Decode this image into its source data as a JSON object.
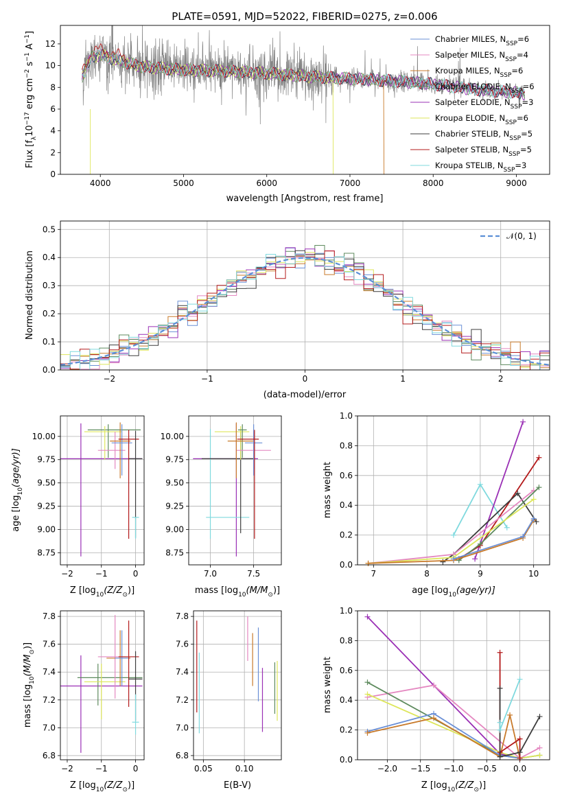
{
  "figure_title": "PLATE=0591, MJD=52022, FIBERID=0275, z=0.006",
  "colors": {
    "Chabrier MILES": "#6a8fd6",
    "Salpeter MILES": "#e487c0",
    "Kroupa MILES": "#c87a2a",
    "Chabrier ELODIE": "#5d8a5d",
    "Salpeter ELODIE": "#9a2fb5",
    "Kroupa ELODIE": "#dde65a",
    "Chabrier STELIB": "#3c3c3c",
    "Salpeter STELIB": "#b3191a",
    "Kroupa STELIB": "#7fd9de",
    "data": "#808080",
    "normal": "#5b8fd6"
  },
  "chart_data": [
    {
      "id": "spectrum",
      "type": "line",
      "title": "PLATE=0591, MJD=52022, FIBERID=0275, z=0.006",
      "xlabel": "wavelength [Angstrom, rest frame]",
      "ylabel": "Flux [f",
      "ylabel_sub": "λ",
      "ylabel_rest": "10",
      "ylabel_exp": "−17",
      "ylabel_tail": " erg cm",
      "ylabel_exp2": "−2",
      "ylabel_tail2": " s",
      "ylabel_exp3": "−1",
      "ylabel_tail3": " A",
      "ylabel_exp4": "−1",
      "ylabel_end": "]",
      "xlim": [
        3520,
        9400
      ],
      "ylim": [
        0,
        13.7
      ],
      "xticks": [
        4000,
        5000,
        6000,
        7000,
        8000,
        9000
      ],
      "yticks": [
        0,
        2,
        4,
        6,
        8,
        10,
        12
      ],
      "legend": [
        {
          "base": "Chabrier MILES, N",
          "sub": "SSP",
          "tail": "=6"
        },
        {
          "base": "Salpeter MILES, N",
          "sub": "SSP",
          "tail": "=4"
        },
        {
          "base": "Kroupa MILES, N",
          "sub": "SSP",
          "tail": "=6"
        },
        {
          "base": "Chabrier ELODIE, N",
          "sub": "SSP",
          "tail": "=6"
        },
        {
          "base": "Salpeter ELODIE, N",
          "sub": "SSP",
          "tail": "=3"
        },
        {
          "base": "Kroupa ELODIE, N",
          "sub": "SSP",
          "tail": "=6"
        },
        {
          "base": "Chabrier STELIB, N",
          "sub": "SSP",
          "tail": "=5"
        },
        {
          "base": "Salpeter STELIB, N",
          "sub": "SSP",
          "tail": "=5"
        },
        {
          "base": "Kroupa STELIB, N",
          "sub": "SSP",
          "tail": "=3"
        }
      ],
      "legend_placement": "upper-right",
      "continuum": [
        [
          3780,
          9.0
        ],
        [
          3900,
          10.8
        ],
        [
          4000,
          11.0
        ],
        [
          4200,
          10.5
        ],
        [
          4500,
          9.9
        ],
        [
          5000,
          9.6
        ],
        [
          5500,
          9.5
        ],
        [
          6000,
          9.3
        ],
        [
          6500,
          9.0
        ],
        [
          7000,
          8.8
        ],
        [
          7500,
          8.6
        ],
        [
          8000,
          8.3
        ],
        [
          8500,
          7.8
        ],
        [
          9000,
          7.5
        ],
        [
          9100,
          7.4
        ]
      ],
      "dropouts": {
        "Kroupa ELODIE": 6800,
        "Kroupa MILES": 7410
      }
    },
    {
      "id": "residuals",
      "type": "histogram",
      "xlabel": "(data-model)/error",
      "ylabel": "Normed distribution",
      "xlim": [
        -2.5,
        2.5
      ],
      "ylim": [
        0,
        0.53
      ],
      "xticks": [
        -2,
        -1,
        0,
        1,
        2
      ],
      "xtick_labels": [
        "−2",
        "−1",
        "0",
        "1",
        "2"
      ],
      "yticks": [
        0.0,
        0.1,
        0.2,
        0.3,
        0.4,
        0.5
      ],
      "grid": true,
      "bin_width": 0.1,
      "legend": [
        {
          "label": "𝒩(0, 1)"
        }
      ],
      "legend_placement": "upper-right"
    },
    {
      "id": "age-vs-Z",
      "type": "errorbar",
      "xlabel_main": "Z [log",
      "xlabel_sub": "10",
      "xlabel_tail": "(Z/Z",
      "xlabel_sub2": "⊙",
      "xlabel_end": ")]",
      "ylabel_main": "age  [log",
      "ylabel_sub": "10",
      "ylabel_tail": "(age/yr)]",
      "xlim": [
        -2.2,
        0.25
      ],
      "ylim": [
        8.62,
        10.22
      ],
      "xticks": [
        -2,
        -1,
        0
      ],
      "xtick_labels": [
        "−2",
        "−1",
        "0"
      ],
      "yticks": [
        8.75,
        9.0,
        9.25,
        9.5,
        9.75,
        10.0
      ],
      "ytick_labels": [
        "8.75",
        "9.00",
        "9.25",
        "9.50",
        "9.75",
        "10.00"
      ],
      "points": [
        {
          "model": "Salpeter ELODIE",
          "x": -1.6,
          "xerr": [
            0.6,
            1.8
          ],
          "y": 9.76,
          "yerr": [
            1.05,
            0.38
          ]
        },
        {
          "model": "Chabrier ELODIE",
          "x": -0.8,
          "xerr": [
            0.6,
            0.95
          ],
          "y": 10.07,
          "yerr": [
            0.3,
            0.06
          ]
        },
        {
          "model": "Kroupa ELODIE",
          "x": -0.9,
          "xerr": [
            0.6,
            0.5
          ],
          "y": 10.05,
          "yerr": [
            0.3,
            0.06
          ]
        },
        {
          "model": "Salpeter MILES",
          "x": -0.6,
          "xerr": [
            0.5,
            0.3
          ],
          "y": 9.85,
          "yerr": [
            0.2,
            0.2
          ]
        },
        {
          "model": "Kroupa MILES",
          "x": -0.45,
          "xerr": [
            0.3,
            0.3
          ],
          "y": 9.95,
          "yerr": [
            0.4,
            0.2
          ]
        },
        {
          "model": "Chabrier MILES",
          "x": -0.4,
          "xerr": [
            0.3,
            0.3
          ],
          "y": 9.93,
          "yerr": [
            0.35,
            0.2
          ]
        },
        {
          "model": "Salpeter STELIB",
          "x": -0.2,
          "xerr": [
            0.3,
            0.3
          ],
          "y": 9.97,
          "yerr": [
            1.07,
            0.1
          ]
        },
        {
          "model": "Chabrier STELIB",
          "x": 0.0,
          "xerr": [
            0.2,
            0.2
          ],
          "y": 9.76,
          "yerr": [
            0.85,
            0.3
          ]
        },
        {
          "model": "Kroupa STELIB",
          "x": 0.0,
          "xerr": [
            0.1,
            0.1
          ],
          "y": 9.13,
          "yerr": [
            0.23,
            0.0
          ]
        }
      ]
    },
    {
      "id": "age-vs-mass",
      "type": "errorbar",
      "xlabel_main": "mass [log",
      "xlabel_sub": "10",
      "xlabel_tail": "(M/M",
      "xlabel_sub2": "⊙",
      "xlabel_end": ")]",
      "xlim": [
        6.75,
        7.82
      ],
      "ylim": [
        8.62,
        10.22
      ],
      "xticks": [
        7.0,
        7.5
      ],
      "xtick_labels": [
        "7.0",
        "7.5"
      ],
      "yticks": [
        8.75,
        9.0,
        9.25,
        9.5,
        9.75,
        10.0
      ],
      "ytick_labels": [
        "8.75",
        "9.00",
        "9.25",
        "9.50",
        "9.75",
        "10.00"
      ],
      "points": [
        {
          "model": "Salpeter ELODIE",
          "x": 7.3,
          "xerr": [
            0.5,
            0.25
          ],
          "y": 9.76,
          "yerr": [
            1.05,
            0.38
          ]
        },
        {
          "model": "Kroupa STELIB",
          "x": 7.0,
          "xerr": [
            0.05,
            0.45
          ],
          "y": 9.13,
          "yerr": [
            0.23,
            0.95
          ]
        },
        {
          "model": "Chabrier STELIB",
          "x": 7.35,
          "xerr": [
            0.45,
            0.15
          ],
          "y": 9.76,
          "yerr": [
            0.8,
            0.3
          ]
        },
        {
          "model": "Kroupa ELODIE",
          "x": 7.35,
          "xerr": [
            0.3,
            0.1
          ],
          "y": 10.05,
          "yerr": [
            0.3,
            0.06
          ]
        },
        {
          "model": "Chabrier ELODIE",
          "x": 7.37,
          "xerr": [
            0.05,
            0.05
          ],
          "y": 10.07,
          "yerr": [
            0.3,
            0.06
          ]
        },
        {
          "model": "Salpeter MILES",
          "x": 7.5,
          "xerr": [
            0.2,
            0.2
          ],
          "y": 9.85,
          "yerr": [
            0.2,
            0.2
          ]
        },
        {
          "model": "Kroupa MILES",
          "x": 7.3,
          "xerr": [
            0.1,
            0.2
          ],
          "y": 9.95,
          "yerr": [
            0.4,
            0.2
          ]
        },
        {
          "model": "Chabrier MILES",
          "x": 7.5,
          "xerr": [
            0.1,
            0.1
          ],
          "y": 9.93,
          "yerr": [
            0.35,
            0.2
          ]
        },
        {
          "model": "Salpeter STELIB",
          "x": 7.51,
          "xerr": [
            0.2,
            0.05
          ],
          "y": 9.97,
          "yerr": [
            1.07,
            0.1
          ]
        }
      ]
    },
    {
      "id": "weight-vs-age",
      "type": "line",
      "xlabel_main": "age  [log",
      "xlabel_sub": "10",
      "xlabel_tail": "(age/yr)]",
      "ylabel": "mass weight",
      "xlim": [
        6.7,
        10.3
      ],
      "ylim": [
        0,
        1.0
      ],
      "xticks": [
        7,
        8,
        9,
        10
      ],
      "yticks": [
        0.0,
        0.2,
        0.4,
        0.6,
        0.8,
        1.0
      ],
      "series": [
        {
          "model": "Kroupa STELIB",
          "x": [
            8.5,
            9.0,
            9.5
          ],
          "y": [
            0.2,
            0.54,
            0.25
          ]
        },
        {
          "model": "Salpeter ELODIE",
          "x": [
            8.9,
            9.8
          ],
          "y": [
            0.04,
            0.96
          ]
        },
        {
          "model": "Salpeter STELIB",
          "x": [
            8.6,
            9.0,
            10.1
          ],
          "y": [
            0.04,
            0.13,
            0.72
          ]
        },
        {
          "model": "Chabrier STELIB",
          "x": [
            8.3,
            8.5,
            9.7,
            10.05
          ],
          "y": [
            0.02,
            0.07,
            0.48,
            0.29
          ]
        },
        {
          "model": "Salpeter MILES",
          "x": [
            6.9,
            8.5,
            10.0
          ],
          "y": [
            0.01,
            0.07,
            0.5
          ]
        },
        {
          "model": "Chabrier ELODIE",
          "x": [
            8.6,
            9.0,
            10.1
          ],
          "y": [
            0.03,
            0.14,
            0.52
          ]
        },
        {
          "model": "Kroupa ELODIE",
          "x": [
            6.9,
            8.5,
            10.0
          ],
          "y": [
            0.01,
            0.05,
            0.44
          ]
        },
        {
          "model": "Kroupa MILES",
          "x": [
            6.9,
            8.5,
            9.8,
            10.0
          ],
          "y": [
            0.01,
            0.03,
            0.18,
            0.3
          ]
        },
        {
          "model": "Chabrier MILES",
          "x": [
            8.5,
            9.8,
            10.0
          ],
          "y": [
            0.04,
            0.19,
            0.31
          ]
        }
      ]
    },
    {
      "id": "mass-vs-Z",
      "type": "errorbar",
      "xlabel_main": "Z [log",
      "xlabel_sub": "10",
      "xlabel_tail": "(Z/Z",
      "xlabel_sub2": "⊙",
      "xlabel_end": ")]",
      "ylabel_main": "mass [log",
      "ylabel_sub": "10",
      "ylabel_tail": "(M/M",
      "ylabel_sub2": "⊙",
      "ylabel_end": ")]",
      "xlim": [
        -2.2,
        0.25
      ],
      "ylim": [
        6.77,
        7.84
      ],
      "xticks": [
        -2,
        -1,
        0
      ],
      "xtick_labels": [
        "−2",
        "−1",
        "0"
      ],
      "yticks": [
        6.8,
        7.0,
        7.2,
        7.4,
        7.6,
        7.8
      ],
      "ytick_labels": [
        "6.8",
        "7.0",
        "7.2",
        "7.4",
        "7.6",
        "7.8"
      ],
      "points": [
        {
          "model": "Salpeter ELODIE",
          "x": -1.6,
          "xerr": [
            0.6,
            1.8
          ],
          "y": 7.3,
          "yerr": [
            0.48,
            0.22
          ]
        },
        {
          "model": "Chabrier ELODIE",
          "x": -1.1,
          "xerr": [
            0.6,
            1.3
          ],
          "y": 7.36,
          "yerr": [
            0.2,
            0.1
          ]
        },
        {
          "model": "Kroupa ELODIE",
          "x": -1.0,
          "xerr": [
            0.5,
            0.7
          ],
          "y": 7.33,
          "yerr": [
            0.27,
            0.13
          ]
        },
        {
          "model": "Salpeter MILES",
          "x": -0.6,
          "xerr": [
            0.5,
            0.3
          ],
          "y": 7.51,
          "yerr": [
            0.3,
            0.3
          ]
        },
        {
          "model": "Kroupa MILES",
          "x": -0.45,
          "xerr": [
            0.4,
            0.3
          ],
          "y": 7.5,
          "yerr": [
            0.2,
            0.2
          ]
        },
        {
          "model": "Chabrier MILES",
          "x": -0.4,
          "xerr": [
            0.2,
            0.2
          ],
          "y": 7.5,
          "yerr": [
            0.2,
            0.2
          ]
        },
        {
          "model": "Salpeter STELIB",
          "x": -0.2,
          "xerr": [
            0.3,
            0.3
          ],
          "y": 7.51,
          "yerr": [
            0.36,
            0.26
          ]
        },
        {
          "model": "Chabrier STELIB",
          "x": 0.0,
          "xerr": [
            0.2,
            0.2
          ],
          "y": 7.35,
          "yerr": [
            0.3,
            0.2
          ]
        },
        {
          "model": "Kroupa STELIB",
          "x": 0.0,
          "xerr": [
            0.1,
            0.1
          ],
          "y": 7.04,
          "yerr": [
            0.09,
            0.2
          ]
        }
      ]
    },
    {
      "id": "mass-vs-ebv",
      "type": "errorbar",
      "xlabel": "E(B-V)",
      "xlim": [
        0.038,
        0.145
      ],
      "ylim": [
        6.77,
        7.84
      ],
      "xticks": [
        0.05,
        0.1
      ],
      "xtick_labels": [
        "0.05",
        "0.10"
      ],
      "yticks": [
        6.8,
        7.0,
        7.2,
        7.4,
        7.6,
        7.8
      ],
      "ytick_labels": [
        "6.8",
        "7.0",
        "7.2",
        "7.4",
        "7.6",
        "7.8"
      ],
      "points": [
        {
          "model": "Salpeter STELIB",
          "x": 0.042,
          "y": 7.51,
          "yerr": [
            0.4,
            0.26
          ]
        },
        {
          "model": "Kroupa STELIB",
          "x": 0.045,
          "y": 7.25,
          "yerr": [
            0.29,
            0.29
          ]
        },
        {
          "model": "Salpeter MILES",
          "x": 0.104,
          "y": 7.68,
          "yerr": [
            0.2,
            0.12
          ]
        },
        {
          "model": "Kroupa MILES",
          "x": 0.11,
          "y": 7.48,
          "yerr": [
            0.18,
            0.2
          ]
        },
        {
          "model": "Chabrier MILES",
          "x": 0.117,
          "y": 7.43,
          "yerr": [
            0.24,
            0.29
          ]
        },
        {
          "model": "Salpeter ELODIE",
          "x": 0.122,
          "y": 7.2,
          "yerr": [
            0.23,
            0.23
          ]
        },
        {
          "model": "Chabrier ELODIE",
          "x": 0.137,
          "y": 7.3,
          "yerr": [
            0.2,
            0.17
          ]
        },
        {
          "model": "Kroupa ELODIE",
          "x": 0.14,
          "y": 7.25,
          "yerr": [
            0.2,
            0.23
          ]
        }
      ]
    },
    {
      "id": "weight-vs-Z",
      "type": "line",
      "xlabel_main": "Z [log",
      "xlabel_sub": "10",
      "xlabel_tail": "(Z/Z",
      "xlabel_sub2": "⊙",
      "xlabel_end": ")]",
      "ylabel": "mass weight",
      "xlim": [
        -2.45,
        0.45
      ],
      "ylim": [
        0,
        1.0
      ],
      "xticks": [
        -2.0,
        -1.5,
        -1.0,
        -0.5,
        0.0
      ],
      "xtick_labels": [
        "−2.0",
        "−1.5",
        "−1.0",
        "−0.5",
        "0.0"
      ],
      "yticks": [
        0.0,
        0.2,
        0.4,
        0.6,
        0.8,
        1.0
      ],
      "series": [
        {
          "model": "Salpeter ELODIE",
          "x": [
            -2.3,
            -1.3,
            -0.3,
            0.0
          ],
          "y": [
            0.96,
            0.5,
            0.04,
            0.01
          ]
        },
        {
          "model": "Salpeter MILES",
          "x": [
            -2.3,
            -1.3,
            0.0,
            0.3
          ],
          "y": [
            0.42,
            0.5,
            0.01,
            0.08
          ]
        },
        {
          "model": "Chabrier ELODIE",
          "x": [
            -2.3,
            -0.3,
            0.0,
            0.3
          ],
          "y": [
            0.52,
            0.03,
            0.01,
            0.03
          ]
        },
        {
          "model": "Kroupa ELODIE",
          "x": [
            -2.3,
            -0.3,
            0.0,
            0.3
          ],
          "y": [
            0.44,
            0.05,
            0.01,
            0.03
          ]
        },
        {
          "model": "Chabrier MILES",
          "x": [
            -2.3,
            -1.3,
            -0.3,
            0.0
          ],
          "y": [
            0.19,
            0.31,
            0.03,
            0.01
          ]
        },
        {
          "model": "Kroupa MILES",
          "x": [
            -2.3,
            -1.3,
            -0.3,
            -0.15,
            0.0
          ],
          "y": [
            0.18,
            0.28,
            0.02,
            0.3,
            0.01
          ]
        },
        {
          "model": "Salpeter STELIB",
          "x": [
            -0.3,
            -0.3,
            0.0,
            0.0
          ],
          "y": [
            0.72,
            0.05,
            0.14,
            0.01
          ]
        },
        {
          "model": "Chabrier STELIB",
          "x": [
            -0.3,
            -0.3,
            0.0,
            0.3
          ],
          "y": [
            0.48,
            0.02,
            0.05,
            0.29
          ]
        },
        {
          "model": "Kroupa STELIB",
          "x": [
            -0.3,
            -0.3,
            0.0
          ],
          "y": [
            0.25,
            0.2,
            0.54
          ]
        }
      ]
    }
  ]
}
